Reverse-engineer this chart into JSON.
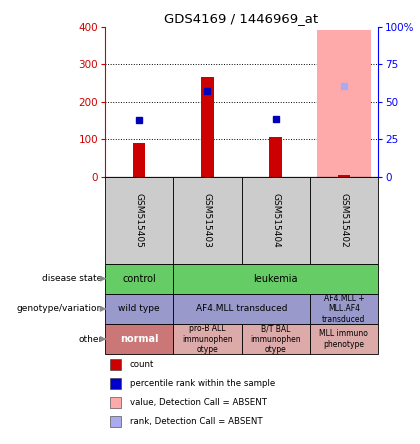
{
  "title": "GDS4169 / 1446969_at",
  "samples": [
    "GSM515405",
    "GSM515403",
    "GSM515404",
    "GSM515402"
  ],
  "red_bars": [
    90,
    265,
    105,
    5
  ],
  "blue_dots": [
    150,
    228,
    153,
    null
  ],
  "pink_bars": [
    null,
    null,
    null,
    390
  ],
  "blue_light_dots": [
    null,
    null,
    null,
    243
  ],
  "ylim_left": [
    0,
    400
  ],
  "ylim_right": [
    0,
    100
  ],
  "yticks_left": [
    0,
    100,
    200,
    300,
    400
  ],
  "yticks_right": [
    0,
    25,
    50,
    75,
    100
  ],
  "legend_items": [
    {
      "color": "#cc0000",
      "label": "count"
    },
    {
      "color": "#0000cc",
      "label": "percentile rank within the sample"
    },
    {
      "color": "#ffaaaa",
      "label": "value, Detection Call = ABSENT"
    },
    {
      "color": "#aaaaee",
      "label": "rank, Detection Call = ABSENT"
    }
  ],
  "sample_bg_color": "#cccccc",
  "red_color": "#cc0000",
  "pink_color": "#ffaaaa",
  "blue_color": "#0000bb",
  "light_blue_color": "#aaaaee",
  "green_color": "#66cc66",
  "purple_color": "#9999cc",
  "normal_color": "#cc7777",
  "other_color": "#ddaaaa"
}
